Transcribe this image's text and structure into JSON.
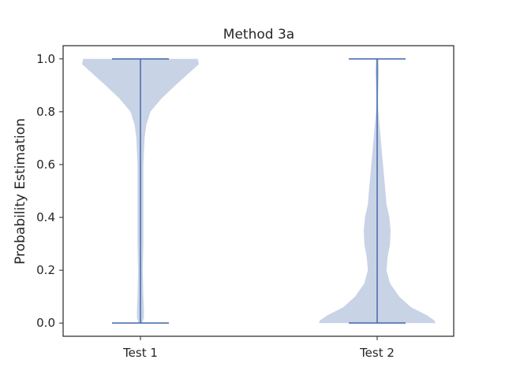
{
  "chart_data": {
    "type": "violin",
    "title": "Method 3a",
    "xlabel": "",
    "ylabel": "Probability Estimation",
    "categories": [
      "Test 1",
      "Test 2"
    ],
    "ylim": [
      -0.05,
      1.05
    ],
    "yticks": [
      "0.0",
      "0.2",
      "0.4",
      "0.6",
      "0.8",
      "1.0"
    ],
    "grid": false,
    "series": [
      {
        "category": "Test 1",
        "min": 0.0,
        "max": 1.0,
        "density_profile": [
          [
            0.0,
            0.03
          ],
          [
            0.02,
            0.06
          ],
          [
            0.05,
            0.06
          ],
          [
            0.1,
            0.05
          ],
          [
            0.2,
            0.04
          ],
          [
            0.3,
            0.05
          ],
          [
            0.4,
            0.05
          ],
          [
            0.5,
            0.05
          ],
          [
            0.6,
            0.05
          ],
          [
            0.7,
            0.07
          ],
          [
            0.75,
            0.1
          ],
          [
            0.8,
            0.17
          ],
          [
            0.85,
            0.36
          ],
          [
            0.9,
            0.6
          ],
          [
            0.95,
            0.85
          ],
          [
            0.98,
            1.0
          ],
          [
            1.0,
            0.98
          ]
        ]
      },
      {
        "category": "Test 2",
        "min": 0.0,
        "max": 1.0,
        "density_profile": [
          [
            0.0,
            1.0
          ],
          [
            0.01,
            0.98
          ],
          [
            0.03,
            0.85
          ],
          [
            0.06,
            0.58
          ],
          [
            0.1,
            0.38
          ],
          [
            0.15,
            0.22
          ],
          [
            0.2,
            0.16
          ],
          [
            0.25,
            0.18
          ],
          [
            0.3,
            0.22
          ],
          [
            0.35,
            0.23
          ],
          [
            0.4,
            0.21
          ],
          [
            0.45,
            0.16
          ],
          [
            0.5,
            0.14
          ],
          [
            0.6,
            0.1
          ],
          [
            0.7,
            0.06
          ],
          [
            0.8,
            0.02
          ],
          [
            0.85,
            0.015
          ],
          [
            0.9,
            0.02
          ],
          [
            0.95,
            0.03
          ],
          [
            1.0,
            0.02
          ]
        ]
      }
    ],
    "colors": {
      "fill": "#c9d3e6",
      "line": "#4c72b0",
      "text": "#262626",
      "axis": "#262626"
    }
  }
}
